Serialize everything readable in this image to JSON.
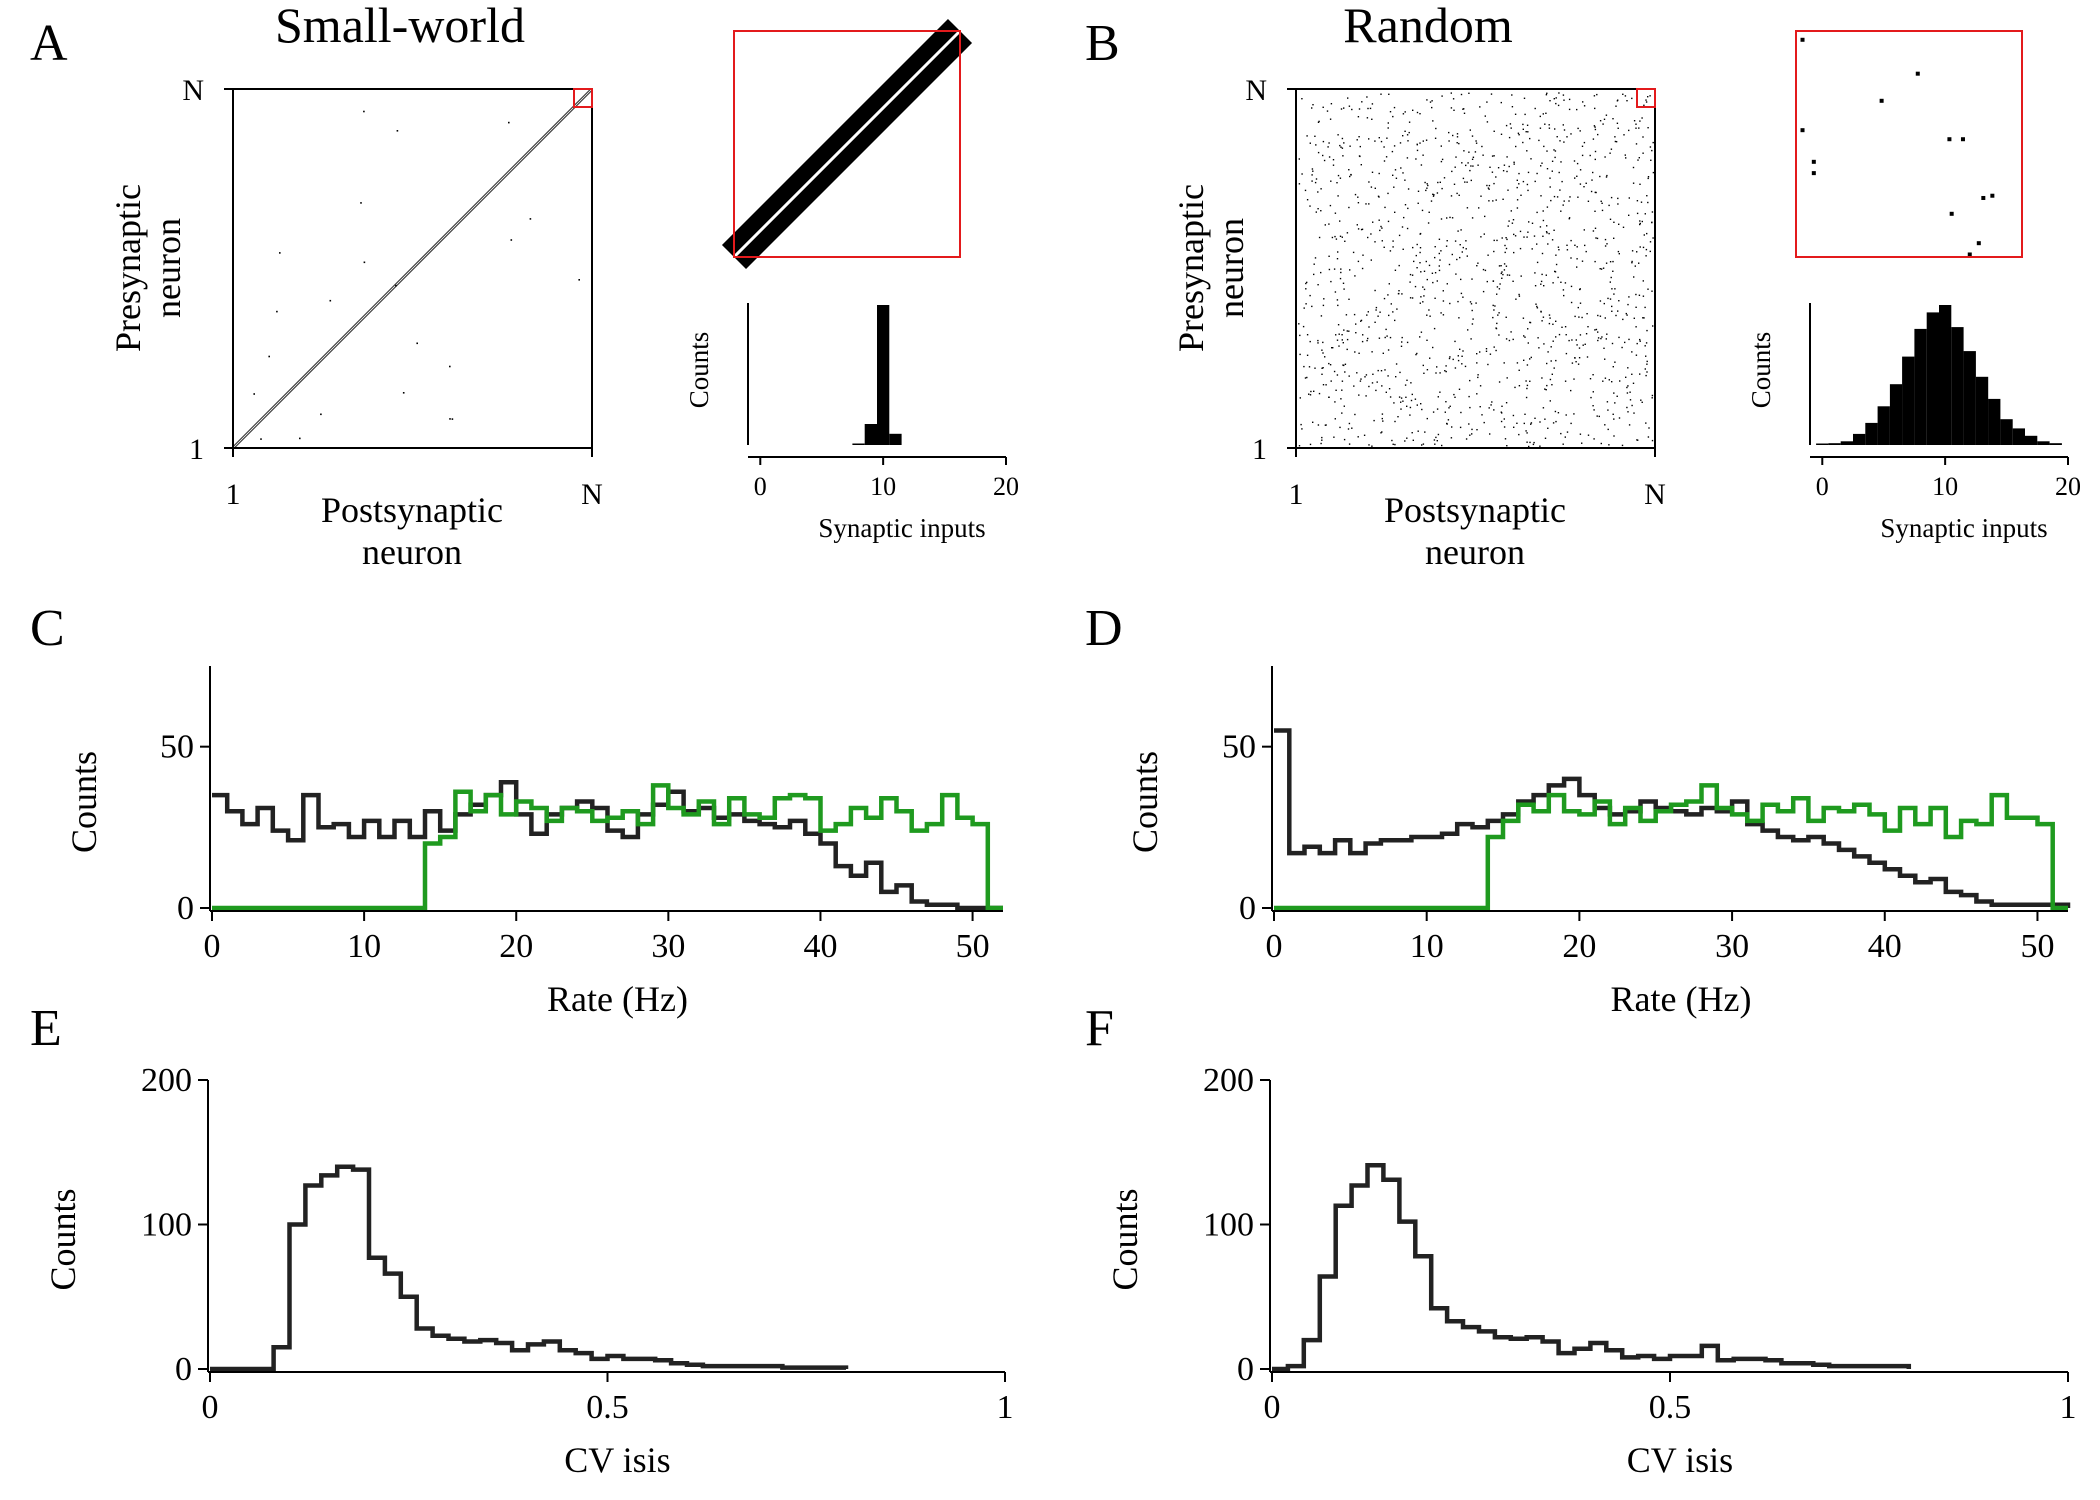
{
  "panels": {
    "A": {
      "letter": "A",
      "title": "Small-world"
    },
    "B": {
      "letter": "B",
      "title": "Random"
    },
    "C": {
      "letter": "C"
    },
    "D": {
      "letter": "D"
    },
    "E": {
      "letter": "E"
    },
    "F": {
      "letter": "F"
    }
  },
  "matrix": {
    "ylabel_line1": "Presynaptic",
    "ylabel_line2": "neuron",
    "xlabel_line1": "Postsynaptic",
    "xlabel_line2": "neuron",
    "tick_first": "1",
    "tick_last": "N",
    "inset_color": "#e31a1c",
    "inset_zoom_fraction": 0.06
  },
  "colors": {
    "line_black": "#222222",
    "line_green": "#1f9a1f",
    "bar": "#000000"
  },
  "chart_data": [
    {
      "id": "A_hist",
      "type": "bar",
      "xlabel": "Synaptic inputs",
      "ylabel": "Counts",
      "xlim": [
        -1,
        20
      ],
      "xticks": [
        0,
        10,
        20
      ],
      "x": [
        8,
        9,
        10,
        11
      ],
      "values": [
        1,
        15,
        100,
        8
      ]
    },
    {
      "id": "B_hist",
      "type": "bar",
      "xlabel": "Synaptic inputs",
      "ylabel": "Counts",
      "xlim": [
        -1,
        20
      ],
      "xticks": [
        0,
        10,
        20
      ],
      "x": [
        0,
        1,
        2,
        3,
        4,
        5,
        6,
        7,
        8,
        9,
        10,
        11,
        12,
        13,
        14,
        15,
        16,
        17,
        18,
        19
      ],
      "values": [
        0,
        1,
        2,
        6,
        12,
        21,
        33,
        48,
        63,
        72,
        76,
        64,
        51,
        37,
        25,
        14,
        9,
        5,
        2,
        1
      ]
    },
    {
      "id": "C",
      "type": "line",
      "xlabel": "Rate (Hz)",
      "ylabel": "Counts",
      "xlim": [
        0,
        52
      ],
      "ylim": [
        0,
        75
      ],
      "xticks": [
        0,
        10,
        20,
        30,
        40,
        50
      ],
      "yticks": [
        0,
        50
      ],
      "step": true,
      "bin_width": 1,
      "x_start": 0,
      "series": [
        {
          "color": "#222222",
          "values": [
            35,
            30,
            26,
            31,
            24,
            21,
            35,
            25,
            26,
            22,
            27,
            22,
            27,
            22,
            30,
            24,
            29,
            32,
            35,
            39,
            29,
            23,
            29,
            31,
            33,
            31,
            24,
            22,
            29,
            32,
            36,
            30,
            31,
            28,
            29,
            27,
            26,
            25,
            27,
            23,
            20,
            13,
            10,
            14,
            5,
            7,
            2,
            1,
            1,
            0,
            0,
            0
          ]
        },
        {
          "color": "#1f9a1f",
          "values": [
            0,
            0,
            0,
            0,
            0,
            0,
            0,
            0,
            0,
            0,
            0,
            0,
            0,
            0,
            20,
            22,
            36,
            30,
            35,
            29,
            33,
            31,
            27,
            31,
            30,
            27,
            28,
            30,
            26,
            38,
            31,
            29,
            33,
            26,
            34,
            29,
            28,
            34,
            35,
            34,
            24,
            26,
            31,
            28,
            34,
            30,
            24,
            26,
            35,
            28,
            26,
            0
          ]
        }
      ]
    },
    {
      "id": "D",
      "type": "line",
      "xlabel": "Rate (Hz)",
      "ylabel": "Counts",
      "xlim": [
        0,
        52
      ],
      "ylim": [
        0,
        75
      ],
      "xticks": [
        0,
        10,
        20,
        30,
        40,
        50
      ],
      "yticks": [
        0,
        50
      ],
      "step": true,
      "bin_width": 1,
      "x_start": 0,
      "series": [
        {
          "color": "#222222",
          "values": [
            55,
            17,
            19,
            17,
            21,
            17,
            20,
            21,
            21,
            22,
            22,
            23,
            26,
            25,
            27,
            29,
            33,
            35,
            38,
            40,
            35,
            31,
            29,
            30,
            33,
            31,
            30,
            29,
            31,
            30,
            33,
            26,
            24,
            22,
            21,
            22,
            20,
            18,
            16,
            14,
            12,
            10,
            8,
            9,
            5,
            4,
            2,
            1,
            1,
            1,
            1,
            1
          ]
        },
        {
          "color": "#1f9a1f",
          "values": [
            0,
            0,
            0,
            0,
            0,
            0,
            0,
            0,
            0,
            0,
            0,
            0,
            0,
            0,
            22,
            27,
            32,
            30,
            35,
            30,
            29,
            33,
            26,
            31,
            27,
            30,
            32,
            33,
            38,
            31,
            29,
            27,
            32,
            30,
            34,
            27,
            31,
            30,
            32,
            29,
            24,
            31,
            26,
            31,
            22,
            27,
            26,
            35,
            28,
            28,
            26,
            0
          ]
        }
      ]
    },
    {
      "id": "E",
      "type": "line",
      "xlabel": "CV isis",
      "ylabel": "Counts",
      "xlim": [
        0,
        1
      ],
      "ylim": [
        0,
        200
      ],
      "xticks": [
        0,
        0.5,
        1
      ],
      "xtick_labels": [
        "0",
        "0.5",
        "1"
      ],
      "yticks": [
        0,
        100,
        200
      ],
      "step": true,
      "bin_width": 0.02,
      "x_start": 0,
      "series": [
        {
          "color": "#222222",
          "values": [
            0,
            0,
            0,
            0,
            15,
            100,
            127,
            134,
            140,
            138,
            77,
            66,
            50,
            28,
            23,
            21,
            19,
            20,
            18,
            13,
            17,
            19,
            13,
            11,
            7,
            9,
            7,
            7,
            6,
            4,
            3,
            2,
            2,
            2,
            2,
            2,
            1,
            1,
            1,
            1
          ]
        }
      ]
    },
    {
      "id": "F",
      "type": "line",
      "xlabel": "CV isis",
      "ylabel": "Counts",
      "xlim": [
        0,
        1
      ],
      "ylim": [
        0,
        200
      ],
      "xticks": [
        0,
        0.5,
        1
      ],
      "xtick_labels": [
        "0",
        "0.5",
        "1"
      ],
      "yticks": [
        0,
        100,
        200
      ],
      "step": true,
      "bin_width": 0.02,
      "x_start": 0,
      "series": [
        {
          "color": "#222222",
          "values": [
            0,
            2,
            20,
            64,
            113,
            127,
            141,
            131,
            102,
            78,
            42,
            33,
            29,
            26,
            22,
            21,
            22,
            19,
            11,
            14,
            18,
            13,
            8,
            9,
            7,
            9,
            9,
            16,
            6,
            7,
            7,
            6,
            4,
            4,
            3,
            2,
            2,
            2,
            2,
            2
          ]
        }
      ]
    }
  ]
}
